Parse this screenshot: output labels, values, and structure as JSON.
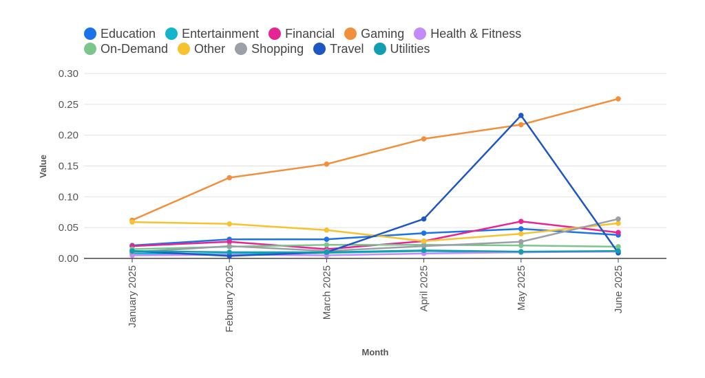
{
  "chart_data": {
    "type": "line",
    "xlabel": "Month",
    "ylabel": "Value",
    "ylim": [
      0,
      0.3
    ],
    "yticks": [
      "0.00",
      "0.05",
      "0.10",
      "0.15",
      "0.20",
      "0.25",
      "0.30"
    ],
    "grid": true,
    "legend_position": "top",
    "categories": [
      "January 2025",
      "February 2025",
      "March 2025",
      "April 2025",
      "May 2025",
      "June 2025"
    ],
    "series": [
      {
        "name": "Education",
        "color": "#1a73e8",
        "values": [
          0.021,
          0.031,
          0.031,
          0.041,
          0.048,
          0.038
        ]
      },
      {
        "name": "Entertainment",
        "color": "#12b5cb",
        "values": [
          0.008,
          0.007,
          0.009,
          0.012,
          0.01,
          0.012
        ]
      },
      {
        "name": "Financial",
        "color": "#e52592",
        "values": [
          0.02,
          0.027,
          0.015,
          0.028,
          0.06,
          0.042
        ]
      },
      {
        "name": "Gaming",
        "color": "#f0903c",
        "values": [
          0.062,
          0.131,
          0.153,
          0.194,
          0.217,
          0.259
        ]
      },
      {
        "name": "Health & Fitness",
        "color": "#c58af9",
        "values": [
          0.005,
          0.006,
          0.005,
          0.008,
          0.01,
          0.011
        ]
      },
      {
        "name": "On-Demand",
        "color": "#7cc68d",
        "values": [
          0.015,
          0.019,
          0.022,
          0.022,
          0.021,
          0.019
        ]
      },
      {
        "name": "Other",
        "color": "#f5c330",
        "values": [
          0.059,
          0.056,
          0.046,
          0.028,
          0.04,
          0.057
        ]
      },
      {
        "name": "Shopping",
        "color": "#9aa0a6",
        "values": [
          0.01,
          0.02,
          0.012,
          0.02,
          0.027,
          0.064
        ]
      },
      {
        "name": "Travel",
        "color": "#1e56c2",
        "values": [
          0.012,
          0.004,
          0.01,
          0.064,
          0.232,
          0.009
        ]
      },
      {
        "name": "Utilities",
        "color": "#129eaf",
        "values": [
          0.012,
          0.01,
          0.01,
          0.013,
          0.011,
          0.012
        ]
      }
    ]
  }
}
